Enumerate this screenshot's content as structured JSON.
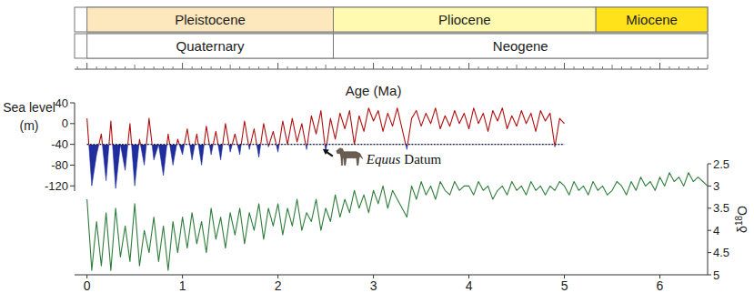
{
  "chart_data": {
    "type": "line",
    "x": [
      0,
      0.05,
      0.1,
      0.15,
      0.2,
      0.25,
      0.3,
      0.35,
      0.4,
      0.45,
      0.5,
      0.55,
      0.6,
      0.65,
      0.7,
      0.75,
      0.8,
      0.85,
      0.9,
      0.95,
      1,
      1.05,
      1.1,
      1.15,
      1.2,
      1.25,
      1.3,
      1.35,
      1.4,
      1.45,
      1.5,
      1.55,
      1.6,
      1.65,
      1.7,
      1.75,
      1.8,
      1.85,
      1.9,
      1.95,
      2,
      2.05,
      2.1,
      2.15,
      2.2,
      2.25,
      2.3,
      2.35,
      2.4,
      2.45,
      2.5,
      2.55,
      2.6,
      2.65,
      2.7,
      2.75,
      2.8,
      2.85,
      2.9,
      2.95,
      3,
      3.05,
      3.1,
      3.15,
      3.2,
      3.25,
      3.3,
      3.35,
      3.4,
      3.45,
      3.5,
      3.55,
      3.6,
      3.65,
      3.7,
      3.75,
      3.8,
      3.85,
      3.9,
      3.95,
      4,
      4.05,
      4.1,
      4.15,
      4.2,
      4.25,
      4.3,
      4.35,
      4.4,
      4.45,
      4.5,
      4.55,
      4.6,
      4.65,
      4.7,
      4.75,
      4.8,
      4.85,
      4.9,
      4.95,
      5,
      5.05,
      5.1,
      5.15,
      5.2,
      5.25,
      5.3,
      5.35,
      5.4,
      5.45,
      5.5,
      5.55,
      5.6,
      5.65,
      5.7,
      5.75,
      5.8,
      5.85,
      5.9,
      5.95,
      6,
      6.05,
      6.1,
      6.15,
      6.2,
      6.25,
      6.3,
      6.35,
      6.4,
      6.45,
      6.5
    ],
    "series": [
      {
        "axis": "y",
        "colors": [
          "#b01010",
          "#1f2d9e"
        ],
        "values": [
          10,
          -120,
          -60,
          -20,
          -110,
          5,
          -125,
          -40,
          -90,
          0,
          -120,
          -30,
          -80,
          10,
          -70,
          -40,
          -100,
          -20,
          -80,
          -30,
          -60,
          -10,
          -70,
          -20,
          -80,
          -5,
          -60,
          -15,
          -70,
          0,
          -55,
          -20,
          -60,
          5,
          -50,
          -10,
          -65,
          0,
          -45,
          -15,
          -55,
          5,
          -40,
          10,
          -35,
          0,
          -50,
          15,
          -20,
          25,
          -55,
          10,
          -30,
          20,
          -10,
          25,
          -40,
          15,
          -15,
          30,
          5,
          25,
          -15,
          20,
          -5,
          30,
          -10,
          -50,
          10,
          25,
          -5,
          20,
          0,
          30,
          -10,
          15,
          -5,
          25,
          0,
          20,
          -10,
          30,
          0,
          20,
          -15,
          25,
          5,
          30,
          -10,
          15,
          -5,
          25,
          0,
          20,
          -15,
          25,
          5,
          20,
          -45,
          10,
          0,
          null,
          null,
          null,
          null,
          null,
          null,
          null,
          null,
          null,
          null,
          null,
          null,
          null,
          null,
          null,
          null,
          null,
          null,
          null,
          null,
          null,
          null,
          null,
          null,
          null,
          null,
          null,
          null,
          null,
          null
        ]
      },
      {
        "axis": "y2",
        "color": "#2f7d3c",
        "values": [
          3.3,
          4.9,
          3.8,
          4.8,
          3.6,
          4.9,
          3.5,
          4.6,
          3.9,
          4.7,
          3.4,
          4.8,
          4.0,
          4.5,
          3.7,
          4.7,
          3.9,
          4.9,
          3.8,
          4.5,
          3.7,
          4.4,
          3.6,
          4.3,
          3.8,
          4.5,
          3.5,
          4.2,
          3.7,
          4.4,
          3.6,
          4.1,
          3.5,
          4.3,
          3.6,
          4.0,
          3.4,
          4.2,
          3.5,
          3.9,
          3.4,
          4.1,
          3.5,
          3.9,
          3.3,
          4.0,
          3.6,
          3.8,
          3.3,
          4.0,
          3.5,
          3.8,
          3.2,
          3.7,
          3.3,
          3.6,
          3.1,
          3.5,
          3.2,
          3.6,
          3.1,
          3.4,
          3.0,
          3.5,
          3.1,
          3.3,
          3.5,
          3.7,
          3.0,
          3.3,
          2.9,
          3.2,
          3.0,
          3.3,
          2.9,
          3.1,
          3.2,
          2.9,
          3.1,
          3.0,
          3.0,
          3.2,
          2.9,
          3.1,
          3.0,
          3.3,
          3.1,
          3.0,
          3.2,
          2.9,
          3.1,
          3.0,
          3.2,
          2.9,
          3.1,
          3.0,
          3.2,
          3.0,
          3.1,
          2.9,
          3.0,
          3.2,
          2.9,
          3.1,
          3.0,
          3.2,
          2.9,
          3.1,
          3.0,
          3.2,
          3.1,
          2.9,
          3.0,
          3.2,
          2.9,
          3.1,
          2.8,
          3.0,
          2.9,
          3.1,
          2.8,
          3.0,
          2.7,
          2.9,
          2.8,
          3.0,
          2.7,
          2.9,
          2.8,
          2.9,
          3.0
        ]
      }
    ],
    "xlim": [
      -0.13,
      6.5
    ],
    "xticks": [
      0,
      1,
      2,
      3,
      4,
      5,
      6
    ],
    "xlabel": "Age (Ma)",
    "ylim": [
      -130,
      40
    ],
    "yticks": [
      40,
      0,
      -40,
      -80,
      -120
    ],
    "ylabel": [
      "Sea level",
      "(m)"
    ],
    "y2lim": [
      5,
      2.5
    ],
    "y2ticks": [
      2.5,
      3,
      3.5,
      4,
      4.5,
      5
    ],
    "y2label": "δ18O",
    "grid": false,
    "reference_line": {
      "y": -40,
      "x": [
        0,
        5
      ],
      "line_style": "dotted"
    },
    "annotation": {
      "italic_text": "Equus",
      "text": "Datum",
      "x": 2.45,
      "y": -40
    },
    "epochs": [
      {
        "label": "Pleistocene",
        "start": 0,
        "end": 2.58,
        "color": "#fde7bd"
      },
      {
        "label": "Pliocene",
        "start": 2.58,
        "end": 5.33,
        "color": "#fffab0"
      },
      {
        "label": "Miocene",
        "start": 5.33,
        "end": 6.5,
        "color": "#ffe21a"
      }
    ],
    "periods": [
      {
        "label": "Quaternary",
        "start": 0,
        "end": 2.58,
        "color": "#ffffff"
      },
      {
        "label": "Neogene",
        "start": 2.58,
        "end": 6.5,
        "color": "#ffffff"
      }
    ]
  }
}
